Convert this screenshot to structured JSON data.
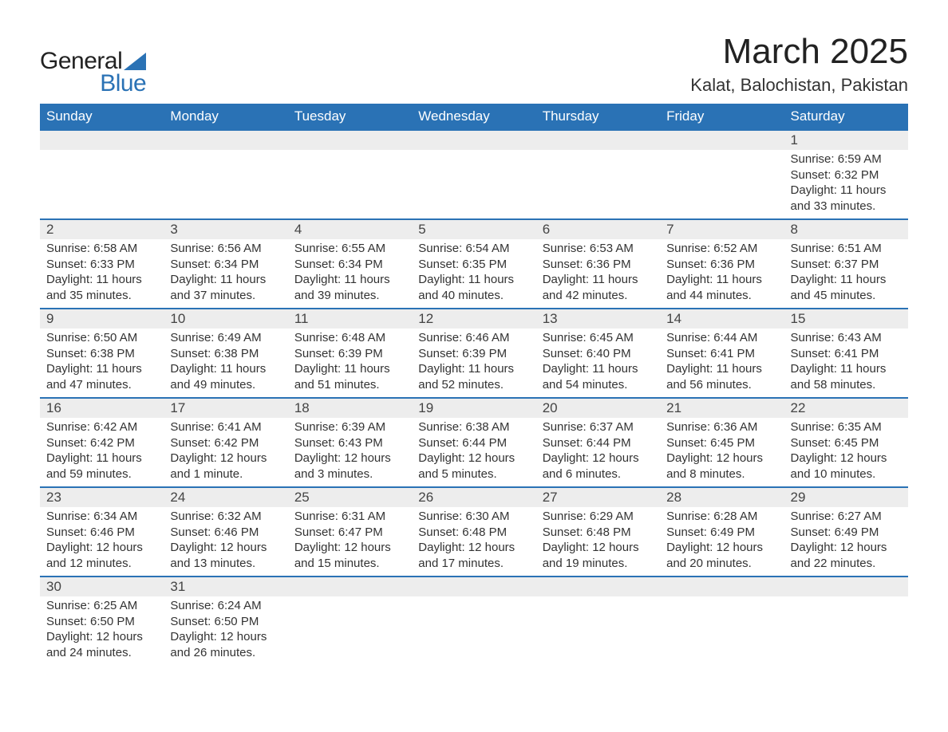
{
  "logo": {
    "part1": "General",
    "part2": "Blue"
  },
  "title": "March 2025",
  "location": "Kalat, Balochistan, Pakistan",
  "colors": {
    "header_bg": "#2a72b5",
    "header_text": "#ffffff",
    "daynum_bg": "#ededed",
    "row_border": "#2a72b5",
    "body_text": "#333333",
    "logo_blue": "#2a72b5"
  },
  "weekdays": [
    "Sunday",
    "Monday",
    "Tuesday",
    "Wednesday",
    "Thursday",
    "Friday",
    "Saturday"
  ],
  "first_weekday_index": 6,
  "days": [
    {
      "n": 1,
      "sunrise": "6:59 AM",
      "sunset": "6:32 PM",
      "daylight": "11 hours and 33 minutes."
    },
    {
      "n": 2,
      "sunrise": "6:58 AM",
      "sunset": "6:33 PM",
      "daylight": "11 hours and 35 minutes."
    },
    {
      "n": 3,
      "sunrise": "6:56 AM",
      "sunset": "6:34 PM",
      "daylight": "11 hours and 37 minutes."
    },
    {
      "n": 4,
      "sunrise": "6:55 AM",
      "sunset": "6:34 PM",
      "daylight": "11 hours and 39 minutes."
    },
    {
      "n": 5,
      "sunrise": "6:54 AM",
      "sunset": "6:35 PM",
      "daylight": "11 hours and 40 minutes."
    },
    {
      "n": 6,
      "sunrise": "6:53 AM",
      "sunset": "6:36 PM",
      "daylight": "11 hours and 42 minutes."
    },
    {
      "n": 7,
      "sunrise": "6:52 AM",
      "sunset": "6:36 PM",
      "daylight": "11 hours and 44 minutes."
    },
    {
      "n": 8,
      "sunrise": "6:51 AM",
      "sunset": "6:37 PM",
      "daylight": "11 hours and 45 minutes."
    },
    {
      "n": 9,
      "sunrise": "6:50 AM",
      "sunset": "6:38 PM",
      "daylight": "11 hours and 47 minutes."
    },
    {
      "n": 10,
      "sunrise": "6:49 AM",
      "sunset": "6:38 PM",
      "daylight": "11 hours and 49 minutes."
    },
    {
      "n": 11,
      "sunrise": "6:48 AM",
      "sunset": "6:39 PM",
      "daylight": "11 hours and 51 minutes."
    },
    {
      "n": 12,
      "sunrise": "6:46 AM",
      "sunset": "6:39 PM",
      "daylight": "11 hours and 52 minutes."
    },
    {
      "n": 13,
      "sunrise": "6:45 AM",
      "sunset": "6:40 PM",
      "daylight": "11 hours and 54 minutes."
    },
    {
      "n": 14,
      "sunrise": "6:44 AM",
      "sunset": "6:41 PM",
      "daylight": "11 hours and 56 minutes."
    },
    {
      "n": 15,
      "sunrise": "6:43 AM",
      "sunset": "6:41 PM",
      "daylight": "11 hours and 58 minutes."
    },
    {
      "n": 16,
      "sunrise": "6:42 AM",
      "sunset": "6:42 PM",
      "daylight": "11 hours and 59 minutes."
    },
    {
      "n": 17,
      "sunrise": "6:41 AM",
      "sunset": "6:42 PM",
      "daylight": "12 hours and 1 minute."
    },
    {
      "n": 18,
      "sunrise": "6:39 AM",
      "sunset": "6:43 PM",
      "daylight": "12 hours and 3 minutes."
    },
    {
      "n": 19,
      "sunrise": "6:38 AM",
      "sunset": "6:44 PM",
      "daylight": "12 hours and 5 minutes."
    },
    {
      "n": 20,
      "sunrise": "6:37 AM",
      "sunset": "6:44 PM",
      "daylight": "12 hours and 6 minutes."
    },
    {
      "n": 21,
      "sunrise": "6:36 AM",
      "sunset": "6:45 PM",
      "daylight": "12 hours and 8 minutes."
    },
    {
      "n": 22,
      "sunrise": "6:35 AM",
      "sunset": "6:45 PM",
      "daylight": "12 hours and 10 minutes."
    },
    {
      "n": 23,
      "sunrise": "6:34 AM",
      "sunset": "6:46 PM",
      "daylight": "12 hours and 12 minutes."
    },
    {
      "n": 24,
      "sunrise": "6:32 AM",
      "sunset": "6:46 PM",
      "daylight": "12 hours and 13 minutes."
    },
    {
      "n": 25,
      "sunrise": "6:31 AM",
      "sunset": "6:47 PM",
      "daylight": "12 hours and 15 minutes."
    },
    {
      "n": 26,
      "sunrise": "6:30 AM",
      "sunset": "6:48 PM",
      "daylight": "12 hours and 17 minutes."
    },
    {
      "n": 27,
      "sunrise": "6:29 AM",
      "sunset": "6:48 PM",
      "daylight": "12 hours and 19 minutes."
    },
    {
      "n": 28,
      "sunrise": "6:28 AM",
      "sunset": "6:49 PM",
      "daylight": "12 hours and 20 minutes."
    },
    {
      "n": 29,
      "sunrise": "6:27 AM",
      "sunset": "6:49 PM",
      "daylight": "12 hours and 22 minutes."
    },
    {
      "n": 30,
      "sunrise": "6:25 AM",
      "sunset": "6:50 PM",
      "daylight": "12 hours and 24 minutes."
    },
    {
      "n": 31,
      "sunrise": "6:24 AM",
      "sunset": "6:50 PM",
      "daylight": "12 hours and 26 minutes."
    }
  ],
  "labels": {
    "sunrise": "Sunrise:",
    "sunset": "Sunset:",
    "daylight": "Daylight:"
  }
}
